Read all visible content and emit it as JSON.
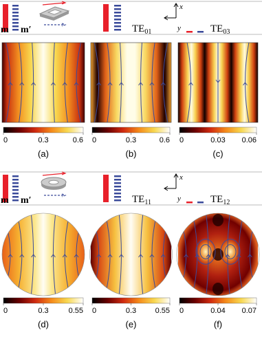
{
  "rows": [
    {
      "left_labels": {
        "m": "m",
        "m_prime": "m′"
      },
      "mode_left": {
        "base": "TE",
        "sub": "01"
      },
      "mode_right": {
        "base": "TE",
        "sub": "03"
      },
      "axes": {
        "x": "x",
        "y": "y"
      },
      "panels": [
        {
          "label": "(a)",
          "colorbar_ticks": [
            0,
            0.3,
            0.6
          ]
        },
        {
          "label": "(b)",
          "colorbar_ticks": [
            0,
            0.3,
            0.6
          ]
        },
        {
          "label": "(c)",
          "colorbar_ticks": [
            0,
            0.03,
            0.06
          ]
        }
      ]
    },
    {
      "left_labels": {
        "m": "m",
        "m_prime": "m′"
      },
      "mode_left": {
        "base": "TE",
        "sub": "11"
      },
      "mode_right": {
        "base": "TE",
        "sub": "12"
      },
      "axes": {
        "x": "x",
        "y": "y"
      },
      "panels": [
        {
          "label": "(d)",
          "colorbar_ticks": [
            0,
            0.3,
            0.55
          ]
        },
        {
          "label": "(e)",
          "colorbar_ticks": [
            0,
            0.3,
            0.55
          ]
        },
        {
          "label": "(f)",
          "colorbar_ticks": [
            0,
            0.04,
            0.07
          ]
        }
      ]
    }
  ]
}
